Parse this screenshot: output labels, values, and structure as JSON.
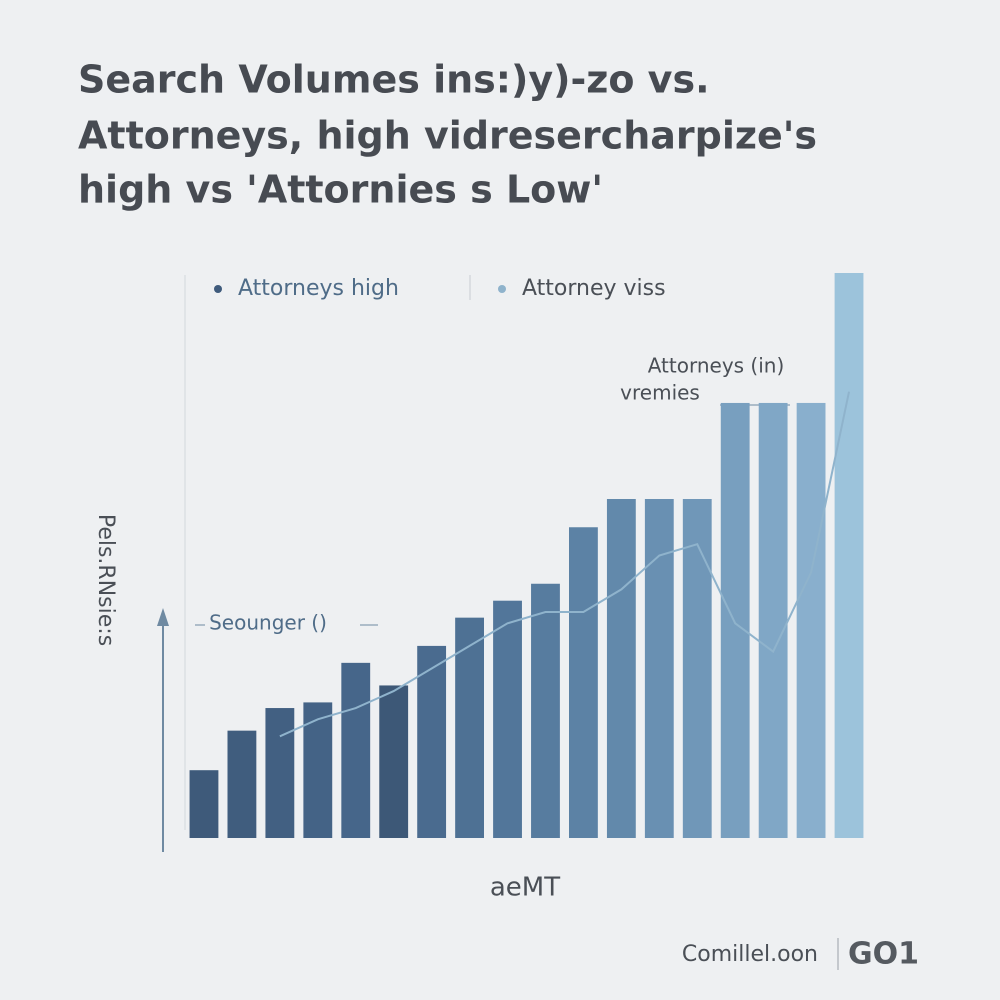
{
  "chart_data": {
    "type": "bar",
    "title": [
      "Search Volumes ins:)y)-zo vs.",
      "Attorneys, high vidresercharpize's",
      "high vs 'Attornies s Low'"
    ],
    "ylabel": "Pels.RNsie:s",
    "xlabel": "aeMT",
    "annotations": [
      "Attorneys (in)",
      "vremies",
      "Seounger ()"
    ],
    "footer": [
      "Comillel.oon",
      "GO1"
    ],
    "categories": [
      null,
      null,
      null,
      null,
      null,
      null,
      null,
      null,
      null,
      null,
      null,
      null,
      null,
      null,
      null,
      null,
      null,
      null
    ],
    "ylim": [
      0,
      100
    ],
    "series": [
      {
        "name": "Attorneys high",
        "type": "bar",
        "color": "#3f5b7c",
        "colors": [
          "#3e5a7a",
          "#405d7e",
          "#426082",
          "#446386",
          "#46668a",
          "#3d5877",
          "#4a6b8f",
          "#4e7194",
          "#52769a",
          "#577c9f",
          "#5c82a5",
          "#6289ab",
          "#6990b2",
          "#7097b8",
          "#789fbf",
          "#80a7c6",
          "#89afcd",
          "#9cc3db"
        ],
        "values": [
          12,
          19,
          23,
          24,
          31,
          27,
          34,
          39,
          42,
          45,
          55,
          60,
          60,
          60,
          77,
          77,
          77,
          100
        ]
      },
      {
        "name": "Attorney viss",
        "type": "line",
        "color": "#8fb3cc",
        "values": [
          null,
          null,
          18,
          21,
          23,
          26,
          30,
          34,
          38,
          40,
          40,
          44,
          50,
          52,
          38,
          33,
          47,
          79
        ]
      }
    ]
  }
}
